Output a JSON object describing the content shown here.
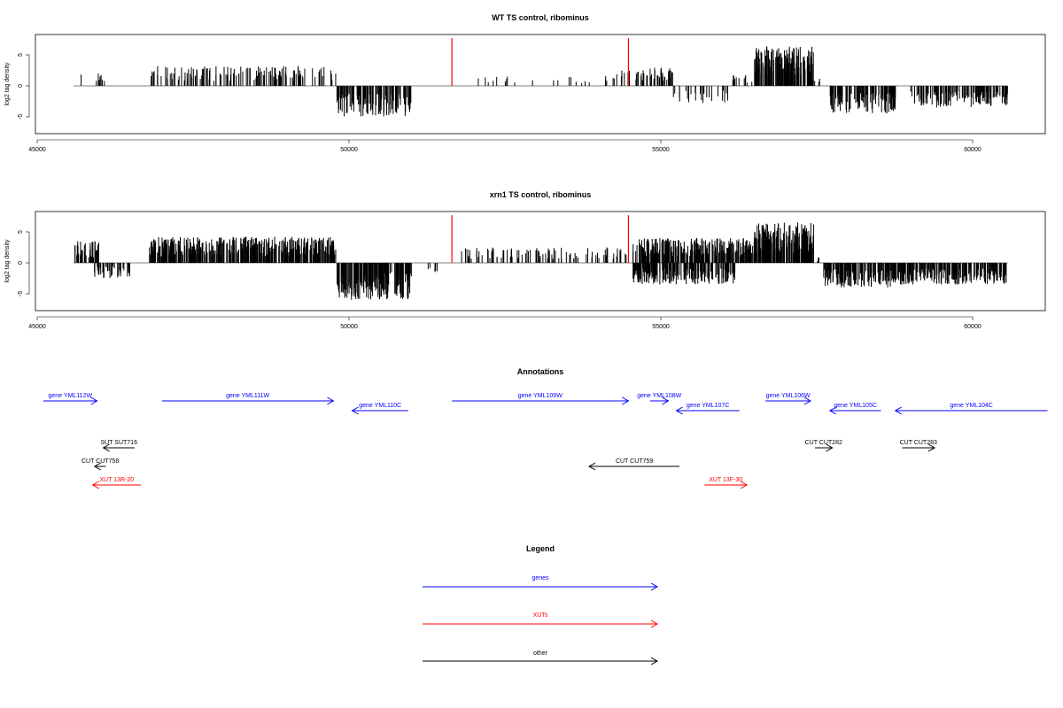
{
  "colors": {
    "gene": "#0000ff",
    "xut": "#ff0000",
    "other": "#000000",
    "marker": "#ff0000",
    "bar": "#000000"
  },
  "x_tick_labels": [
    "45000",
    "50000",
    "55000",
    "60000"
  ],
  "y_tick_labels": [
    "-5",
    "0",
    "5"
  ],
  "chart_data": [
    {
      "type": "bar",
      "title": "WT TS control, ribominus",
      "ylabel": "log2 tag density",
      "xlim": [
        45000,
        61000
      ],
      "ylim": [
        -8,
        8
      ],
      "x_ticks": [
        45000,
        50000,
        55000,
        60000
      ],
      "y_ticks": [
        -5,
        0,
        5
      ],
      "markers_x": [
        51650,
        54480
      ],
      "marker_height": 7.7,
      "baseline_range": [
        45580,
        60560
      ],
      "clusters": [
        {
          "from": 45600,
          "to": 46200,
          "y": 2.0,
          "n": 8
        },
        {
          "from": 46800,
          "to": 49800,
          "y": 3.2,
          "n": 140
        },
        {
          "from": 49800,
          "to": 51000,
          "y": -5.0,
          "n": 120
        },
        {
          "from": 51800,
          "to": 54400,
          "y": 1.6,
          "n": 22
        },
        {
          "from": 54250,
          "to": 54500,
          "y": 2.5,
          "n": 10
        },
        {
          "from": 54550,
          "to": 55200,
          "y": 3.0,
          "n": 40
        },
        {
          "from": 55200,
          "to": 56100,
          "y": -3.0,
          "n": 25
        },
        {
          "from": 56150,
          "to": 56500,
          "y": 1.8,
          "n": 12
        },
        {
          "from": 56500,
          "to": 57450,
          "y": 6.5,
          "n": 160
        },
        {
          "from": 57400,
          "to": 57550,
          "y": 1.2,
          "n": 5
        },
        {
          "from": 57700,
          "to": 58800,
          "y": -4.5,
          "n": 110
        },
        {
          "from": 59000,
          "to": 60560,
          "y": -3.5,
          "n": 130
        }
      ]
    },
    {
      "type": "bar",
      "title": "xrn1 TS control, ribominus",
      "ylabel": "log2 tag density",
      "xlim": [
        45000,
        61000
      ],
      "ylim": [
        -8,
        8
      ],
      "x_ticks": [
        45000,
        50000,
        55000,
        60000
      ],
      "y_ticks": [
        -5,
        0,
        5
      ],
      "markers_x": [
        51650,
        54480
      ],
      "marker_height": 7.7,
      "baseline_range": [
        45580,
        60560
      ],
      "clusters": [
        {
          "from": 45580,
          "to": 46000,
          "y": 3.5,
          "n": 40
        },
        {
          "from": 45900,
          "to": 46500,
          "y": -2.5,
          "n": 40
        },
        {
          "from": 46800,
          "to": 49800,
          "y": 4.2,
          "n": 400
        },
        {
          "from": 49800,
          "to": 51000,
          "y": -6.0,
          "n": 180
        },
        {
          "from": 51250,
          "to": 51450,
          "y": -1.5,
          "n": 6
        },
        {
          "from": 51800,
          "to": 54500,
          "y": 2.5,
          "n": 90
        },
        {
          "from": 54550,
          "to": 56500,
          "y": 4.0,
          "n": 260
        },
        {
          "from": 54550,
          "to": 56200,
          "y": -3.5,
          "n": 200
        },
        {
          "from": 56500,
          "to": 57450,
          "y": 6.5,
          "n": 180
        },
        {
          "from": 57450,
          "to": 57550,
          "y": 1.0,
          "n": 4
        },
        {
          "from": 57600,
          "to": 58800,
          "y": -4.0,
          "n": 150
        },
        {
          "from": 58800,
          "to": 60560,
          "y": -3.5,
          "n": 200
        }
      ]
    }
  ],
  "annotations": {
    "title": "Annotations",
    "xlim": [
      45000,
      61000
    ],
    "items": [
      {
        "label": "gene YML112W",
        "type": "gene",
        "start": 45100,
        "end": 45960,
        "dir": "+",
        "row": 0
      },
      {
        "label": "gene YML111W",
        "type": "gene",
        "start": 47000,
        "end": 49750,
        "dir": "+",
        "row": 0
      },
      {
        "label": "gene YML110C",
        "type": "gene",
        "start": 50050,
        "end": 50950,
        "dir": "-",
        "row": 1
      },
      {
        "label": "gene YML109W",
        "type": "gene",
        "start": 51650,
        "end": 54480,
        "dir": "+",
        "row": 0
      },
      {
        "label": "gene YML108W",
        "type": "gene",
        "start": 54830,
        "end": 55120,
        "dir": "+",
        "row": 0
      },
      {
        "label": "gene YML107C",
        "type": "gene",
        "start": 55250,
        "end": 56260,
        "dir": "-",
        "row": 1
      },
      {
        "label": "gene YML106W",
        "type": "gene",
        "start": 56680,
        "end": 57400,
        "dir": "+",
        "row": 0
      },
      {
        "label": "gene YML105C",
        "type": "gene",
        "start": 57710,
        "end": 58530,
        "dir": "-",
        "row": 1
      },
      {
        "label": "gene YML104C",
        "type": "gene",
        "start": 58760,
        "end": 61200,
        "dir": "-",
        "row": 1
      },
      {
        "label": "SUT SUT716",
        "type": "other",
        "start": 46060,
        "end": 46560,
        "dir": "-",
        "row": 3
      },
      {
        "label": "CUT CUT758",
        "type": "other",
        "start": 45920,
        "end": 46100,
        "dir": "-",
        "row": 4
      },
      {
        "label": "XUT 13R-20",
        "type": "xut",
        "start": 45890,
        "end": 46660,
        "dir": "-",
        "row": 5
      },
      {
        "label": "CUT CUT759",
        "type": "other",
        "start": 53850,
        "end": 55300,
        "dir": "-",
        "row": 4
      },
      {
        "label": "XUT 13F-30",
        "type": "xut",
        "start": 55700,
        "end": 56380,
        "dir": "+",
        "row": 5
      },
      {
        "label": "CUT CUT282",
        "type": "other",
        "start": 57470,
        "end": 57750,
        "dir": "+",
        "row": 3
      },
      {
        "label": "CUT CUT283",
        "type": "other",
        "start": 58870,
        "end": 59390,
        "dir": "+",
        "row": 3
      }
    ]
  },
  "legend": {
    "title": "Legend",
    "entries": [
      {
        "label": "genes",
        "type": "gene"
      },
      {
        "label": "XUTs",
        "type": "xut"
      },
      {
        "label": "other",
        "type": "other"
      }
    ]
  }
}
